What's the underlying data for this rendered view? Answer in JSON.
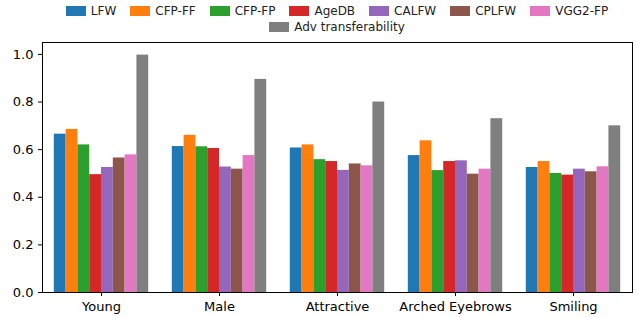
{
  "chart_data": {
    "type": "bar",
    "categories": [
      "Young",
      "Male",
      "Attractive",
      "Arched Eyebrows",
      "Smiling"
    ],
    "series": [
      {
        "name": "LFW",
        "color": "#1f77b4",
        "values": [
          0.665,
          0.613,
          0.607,
          0.575,
          0.525
        ]
      },
      {
        "name": "CFP-FF",
        "color": "#ff7f0e",
        "values": [
          0.685,
          0.66,
          0.62,
          0.637,
          0.55
        ]
      },
      {
        "name": "CFP-FP",
        "color": "#2ca02c",
        "values": [
          0.62,
          0.612,
          0.558,
          0.512,
          0.5
        ]
      },
      {
        "name": "AgeDB",
        "color": "#d62728",
        "values": [
          0.495,
          0.605,
          0.55,
          0.55,
          0.493
        ]
      },
      {
        "name": "CALFW",
        "color": "#9467bd",
        "values": [
          0.525,
          0.527,
          0.513,
          0.553,
          0.518
        ]
      },
      {
        "name": "CPLFW",
        "color": "#8c564b",
        "values": [
          0.565,
          0.518,
          0.54,
          0.497,
          0.507
        ]
      },
      {
        "name": "VGG2-FP",
        "color": "#e377c2",
        "values": [
          0.578,
          0.575,
          0.532,
          0.518,
          0.528
        ]
      },
      {
        "name": "Adv transferability",
        "color": "#7f7f7f",
        "values": [
          0.997,
          0.895,
          0.8,
          0.73,
          0.7
        ]
      }
    ],
    "ylim": [
      0,
      1.05
    ],
    "yticks": [
      {
        "value": 0,
        "label": "0.0"
      },
      {
        "value": 0.2,
        "label": "0.2"
      },
      {
        "value": 0.4,
        "label": "0.4"
      },
      {
        "value": 0.6,
        "label": "0.6"
      },
      {
        "value": 0.8,
        "label": "0.8"
      },
      {
        "value": 1,
        "label": "1.0"
      }
    ],
    "grid": false,
    "legend": "top"
  }
}
